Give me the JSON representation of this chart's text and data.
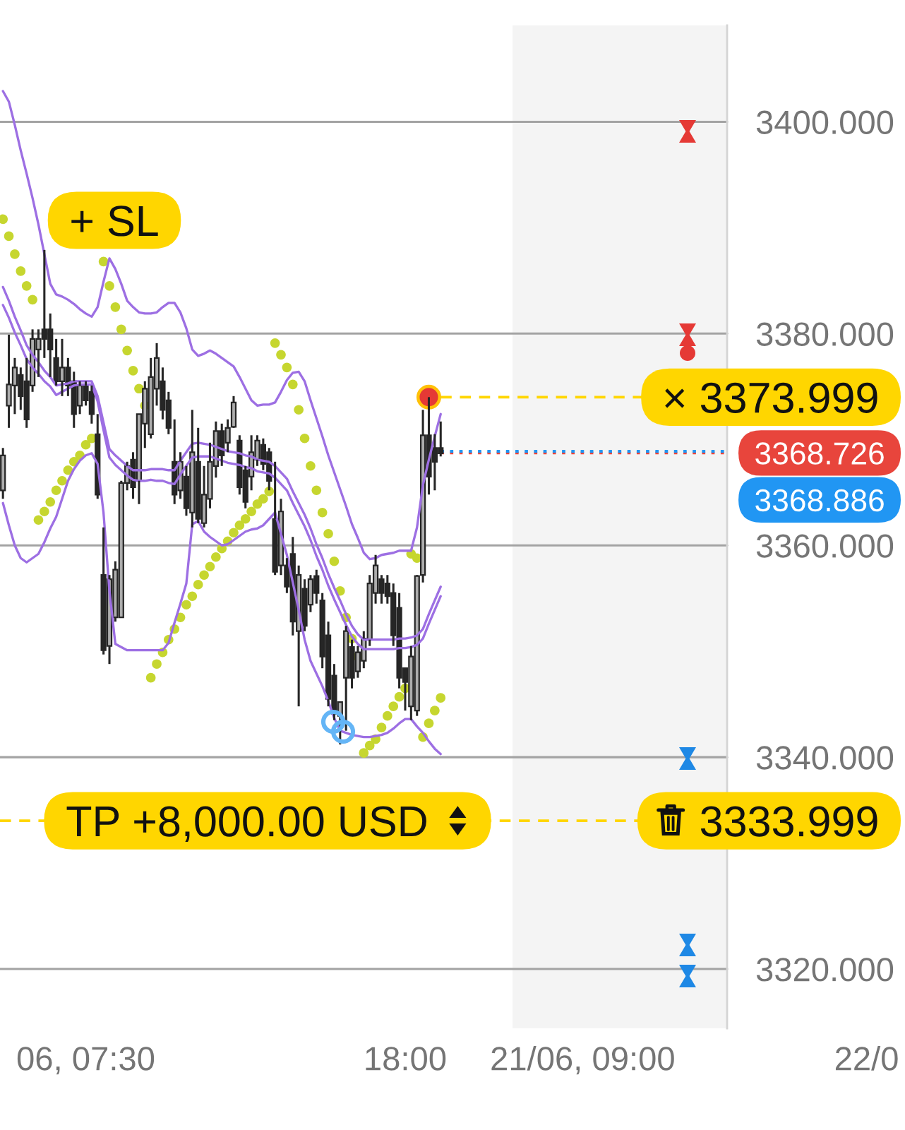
{
  "chart_data": {
    "type": "candlestick",
    "color": "#262626",
    "categories": [
      null,
      null,
      null,
      null,
      null,
      null,
      null,
      null,
      null,
      null,
      null,
      null,
      null,
      null,
      "06, 07:30",
      null,
      null,
      null,
      null,
      null,
      null,
      null,
      null,
      null,
      null,
      null,
      null,
      null,
      null,
      null,
      null,
      null,
      null,
      null,
      null,
      null,
      null,
      null,
      null,
      null,
      null,
      null,
      null,
      null,
      null,
      null,
      null,
      null,
      null,
      null,
      null,
      null,
      null,
      null,
      null,
      null,
      null,
      null,
      null,
      null,
      null,
      null,
      null,
      null,
      null,
      null,
      null,
      null,
      "18:00",
      null,
      null,
      null,
      null,
      null,
      null,
      null,
      null,
      null,
      null,
      null,
      null,
      null,
      null,
      null,
      null,
      null,
      null,
      null,
      null,
      null,
      null,
      null,
      null,
      null,
      null,
      null,
      null,
      null,
      "21/06, 09:00",
      null,
      null,
      null,
      null,
      null,
      null,
      null,
      null,
      null,
      null,
      null,
      null,
      null,
      null,
      null,
      null,
      null,
      null,
      null,
      null,
      null,
      null,
      null,
      null,
      null,
      null,
      null,
      null,
      null,
      null,
      null,
      null,
      null,
      null,
      null,
      null,
      null,
      null,
      null,
      null,
      null,
      null,
      null,
      null,
      null,
      null,
      null,
      "22/0",
      null,
      null,
      null,
      null,
      null,
      null
    ],
    "ohlc": [
      [
        3365.2,
        3369.2,
        3364.4,
        3368.5
      ],
      [
        3373.2,
        3379.9,
        3371.1,
        3375.2
      ],
      [
        3375.1,
        3377.7,
        3372.4,
        3376.8
      ],
      [
        3376.1,
        3376.8,
        3372.8,
        3374.1
      ],
      [
        3375.5,
        3377.7,
        3371.1,
        3371.9
      ],
      [
        3375.1,
        3380.4,
        3374.5,
        3379.5
      ],
      [
        3378.5,
        3380.4,
        3375.9,
        3379.5
      ],
      [
        3380.4,
        3387.9,
        3377.7,
        3379.5
      ],
      [
        3380.4,
        3381.9,
        3375.9,
        3378.5
      ],
      [
        3377.7,
        3379.5,
        3375.1,
        3375.5
      ],
      [
        3375.5,
        3379.5,
        3374.1,
        3376.8
      ],
      [
        3376.8,
        3377.7,
        3374.1,
        3375.1
      ],
      [
        3375.5,
        3376.4,
        3371.1,
        3372.4
      ],
      [
        3373.2,
        3375.5,
        3372.4,
        3375.1
      ],
      [
        3375.1,
        3375.5,
        3373.2,
        3373.7
      ],
      [
        3374.5,
        3375.1,
        3371.5,
        3372.4
      ],
      [
        3370.5,
        3372.4,
        3364.4,
        3364.8
      ],
      [
        3357.2,
        3361.7,
        3349.7,
        3350.1
      ],
      [
        3350.5,
        3357.2,
        3348.8,
        3356.8
      ],
      [
        3353.2,
        3358.5,
        3352.8,
        3357.7
      ],
      [
        3353.2,
        3366.1,
        3353.2,
        3365.9
      ],
      [
        3365.9,
        3367.9,
        3365.2,
        3367.5
      ],
      [
        3368.1,
        3368.8,
        3364.4,
        3365.5
      ],
      [
        3366.1,
        3372.4,
        3363.9,
        3372.4
      ],
      [
        3371.5,
        3375.5,
        3369.2,
        3374.8
      ],
      [
        3370.5,
        3377.7,
        3370.1,
        3375.9
      ],
      [
        3374.8,
        3379.1,
        3373.2,
        3377.7
      ],
      [
        3375.5,
        3376.8,
        3371.9,
        3372.8
      ],
      [
        3373.7,
        3374.5,
        3370.5,
        3371.1
      ],
      [
        3367.9,
        3371.9,
        3363.9,
        3364.8
      ],
      [
        3365.2,
        3368.8,
        3364.4,
        3367.9
      ],
      [
        3366.5,
        3367.5,
        3362.8,
        3363.5
      ],
      [
        3363.1,
        3372.8,
        3361.7,
        3368.8
      ],
      [
        3367.9,
        3371.1,
        3362.1,
        3362.5
      ],
      [
        3362.1,
        3367.5,
        3361.7,
        3364.8
      ],
      [
        3364.4,
        3369.7,
        3363.5,
        3367.9
      ],
      [
        3367.5,
        3371.7,
        3366.4,
        3370.8
      ],
      [
        3370.8,
        3371.5,
        3367.5,
        3368.5
      ],
      [
        3369.7,
        3371.9,
        3368.8,
        3371.1
      ],
      [
        3371.2,
        3374.1,
        3371.1,
        3373.5
      ],
      [
        3369.9,
        3370.4,
        3364.8,
        3365.5
      ],
      [
        3367.1,
        3367.5,
        3363.5,
        3364.1
      ],
      [
        3366.5,
        3370.4,
        3365.2,
        3368.8
      ],
      [
        3368.1,
        3370.4,
        3367.5,
        3369.9
      ],
      [
        3369.5,
        3370.1,
        3367.1,
        3367.7
      ],
      [
        3368.8,
        3369.2,
        3365.2,
        3366.1
      ],
      [
        3362.5,
        3367.9,
        3357.2,
        3357.5
      ],
      [
        3358.1,
        3364.4,
        3357.2,
        3363.2
      ],
      [
        3358.1,
        3358.8,
        3355.5,
        3356.1
      ],
      [
        3359.2,
        3360.8,
        3351.5,
        3352.8
      ],
      [
        3351.9,
        3358.1,
        3344.8,
        3357.2
      ],
      [
        3355.9,
        3356.8,
        3351.9,
        3352.4
      ],
      [
        3354.4,
        3357.2,
        3353.7,
        3356.8
      ],
      [
        3357.1,
        3357.7,
        3354.5,
        3355.5
      ],
      [
        3354.8,
        3355.5,
        3348.4,
        3349.5
      ],
      [
        3351.5,
        3352.8,
        3344.8,
        3345.5
      ],
      [
        3347.7,
        3348.8,
        3343.5,
        3344.1
      ],
      [
        3343.9,
        3345.2,
        3341.2,
        3345.2
      ],
      [
        3347.5,
        3352.4,
        3342.5,
        3351.9
      ],
      [
        3350.4,
        3351.1,
        3346.5,
        3347.5
      ],
      [
        3348.1,
        3350.5,
        3347.5,
        3349.9
      ],
      [
        3349.1,
        3351.9,
        3348.4,
        3351.2
      ],
      [
        3351.1,
        3357.2,
        3350.5,
        3356.4
      ],
      [
        3355.5,
        3359.1,
        3354.5,
        3358.1
      ],
      [
        3356.8,
        3357.2,
        3354.5,
        3355.5
      ],
      [
        3356.4,
        3357.2,
        3354.5,
        3355.2
      ],
      [
        3355.5,
        3356.4,
        3350.5,
        3351.5
      ],
      [
        3354.1,
        3355.5,
        3346.5,
        3347.5
      ],
      [
        3348.4,
        3348.4,
        3344.4,
        3347.1
      ],
      [
        3344.8,
        3350.5,
        3343.5,
        3349.5
      ],
      [
        3344.4,
        3357.2,
        3343.9,
        3357.1
      ],
      [
        3357.2,
        3372.8,
        3356.5,
        3370.4
      ],
      [
        3370.4,
        3374.0,
        3364.8,
        3366.5
      ],
      [
        3369.2,
        3370.5,
        3365.2,
        3367.9
      ],
      [
        3369.2,
        3371.7,
        3368.4,
        3368.7
      ],
      null,
      null,
      null,
      null,
      null,
      null,
      null,
      null,
      null,
      null,
      null,
      null,
      null,
      null,
      null,
      null,
      null,
      null,
      null,
      null,
      null,
      null,
      null,
      null,
      null,
      null,
      null,
      null,
      null,
      null,
      null,
      null,
      null,
      null,
      null,
      null,
      null,
      null,
      null,
      null,
      null,
      null,
      null,
      null,
      null,
      null,
      null,
      null,
      null,
      null,
      null,
      null,
      null,
      null,
      null,
      null,
      null,
      null,
      null,
      null,
      null,
      null,
      null,
      null,
      null,
      null,
      null,
      null,
      null,
      null,
      null,
      null,
      null,
      null,
      null,
      null,
      null,
      null
    ],
    "series": [
      {
        "type": "line",
        "color": "#9d6fe3",
        "values": [
          3402.9,
          3401.9,
          3399.7,
          3397.3,
          3395.1,
          3392.8,
          3390.3,
          3387.5,
          3384.7,
          3383.7,
          3383.5,
          3383.2,
          3382.8,
          3382.3,
          3381.9,
          3381.6,
          3382.5,
          3384.9,
          3387.1,
          3386.1,
          3384.7,
          3383.1,
          3382.5,
          3382.0,
          3381.9,
          3381.9,
          3382.0,
          3382.5,
          3382.9,
          3382.9,
          3382.0,
          3380.5,
          3378.5,
          3377.9,
          3378.1,
          3378.4,
          3378.1,
          3377.7,
          3377.3,
          3376.9,
          3375.9,
          3374.8,
          3373.7,
          3373.2,
          3373.3,
          3373.3,
          3373.5,
          3374.5,
          3375.6,
          3376.3,
          3376.4,
          3375.5,
          3373.7,
          3372.0,
          3370.3,
          3368.5,
          3366.9,
          3365.3,
          3363.7,
          3362.0,
          3360.7,
          3359.3,
          3358.7,
          3358.8,
          3359.1,
          3359.2,
          3359.3,
          3359.5,
          3359.5,
          3359.5,
          3361.7,
          3365.7,
          3368.1,
          3370.3,
          3372.4,
          null,
          null,
          null,
          null,
          null,
          null,
          null,
          null,
          null,
          null,
          null,
          null,
          null,
          null,
          null,
          null,
          null,
          null,
          null,
          null,
          null,
          null,
          null,
          null,
          null,
          null,
          null,
          null,
          null,
          null,
          null,
          null,
          null,
          null,
          null,
          null,
          null,
          null,
          null,
          null,
          null,
          null,
          null,
          null,
          null,
          null,
          null,
          null,
          null,
          null,
          null,
          null,
          null,
          null,
          null,
          null,
          null,
          null,
          null,
          null,
          null,
          null,
          null,
          null,
          null,
          null,
          null,
          null,
          null,
          null,
          null,
          null,
          null,
          null,
          null,
          null,
          null,
          null
        ]
      },
      {
        "type": "line",
        "color": "#9d6fe3",
        "values": [
          3384.4,
          3383.1,
          3381.6,
          3380.3,
          3378.9,
          3378.0,
          3377.3,
          3376.5,
          3375.9,
          3375.1,
          3375.2,
          3375.3,
          3375.5,
          3375.5,
          3375.5,
          3375.5,
          3374.1,
          3371.6,
          3369.1,
          3368.5,
          3368.0,
          3367.5,
          3367.1,
          3367.1,
          3367.1,
          3367.2,
          3367.2,
          3367.2,
          3367.1,
          3367.1,
          3368.0,
          3368.8,
          3369.6,
          3369.7,
          3369.6,
          3369.5,
          3369.3,
          3369.1,
          3368.9,
          3368.8,
          3368.7,
          3368.5,
          3368.4,
          3368.1,
          3368.0,
          3367.9,
          3367.5,
          3366.9,
          3366.3,
          3365.1,
          3364.0,
          3362.9,
          3361.6,
          3360.1,
          3358.8,
          3357.3,
          3356.0,
          3354.8,
          3353.5,
          3352.4,
          3351.6,
          3351.1,
          3351.1,
          3351.1,
          3351.1,
          3351.1,
          3351.1,
          3351.2,
          3351.2,
          3351.3,
          3351.5,
          3352.1,
          3353.5,
          3354.8,
          3356.1,
          null,
          null,
          null,
          null,
          null,
          null,
          null,
          null,
          null,
          null,
          null,
          null,
          null,
          null,
          null,
          null,
          null,
          null,
          null,
          null,
          null,
          null,
          null,
          null,
          null,
          null,
          null,
          null,
          null,
          null,
          null,
          null,
          null,
          null,
          null,
          null,
          null,
          null,
          null,
          null,
          null,
          null,
          null,
          null,
          null,
          null,
          null,
          null,
          null,
          null,
          null,
          null,
          null,
          null,
          null,
          null,
          null,
          null,
          null,
          null,
          null,
          null,
          null,
          null,
          null,
          null,
          null,
          null,
          null,
          null,
          null,
          null,
          null,
          null,
          null,
          null,
          null,
          null
        ]
      },
      {
        "type": "line",
        "color": "#9d6fe3",
        "values": [
          3382.7,
          3381.5,
          3380.1,
          3378.9,
          3377.6,
          3376.8,
          3376.2,
          3375.5,
          3375.0,
          3374.2,
          3374.5,
          3374.8,
          3375.1,
          3375.2,
          3375.2,
          3375.2,
          3373.6,
          3370.9,
          3368.3,
          3367.6,
          3367.1,
          3366.6,
          3366.2,
          3366.1,
          3366.1,
          3366.2,
          3366.1,
          3366.1,
          3365.9,
          3365.8,
          3366.7,
          3367.5,
          3368.3,
          3368.4,
          3368.4,
          3368.4,
          3368.2,
          3368.0,
          3367.8,
          3367.7,
          3367.6,
          3367.4,
          3367.3,
          3367.0,
          3366.9,
          3366.8,
          3366.4,
          3365.8,
          3365.2,
          3364.0,
          3362.9,
          3361.8,
          3360.5,
          3359.0,
          3357.7,
          3356.2,
          3354.9,
          3353.7,
          3352.5,
          3351.4,
          3350.7,
          3350.2,
          3350.2,
          3350.2,
          3350.2,
          3350.2,
          3350.2,
          3350.3,
          3350.3,
          3350.4,
          3350.6,
          3351.2,
          3352.6,
          3353.9,
          3355.2,
          null,
          null,
          null,
          null,
          null,
          null,
          null,
          null,
          null,
          null,
          null,
          null,
          null,
          null,
          null,
          null,
          null,
          null,
          null,
          null,
          null,
          null,
          null,
          null,
          null,
          null,
          null,
          null,
          null,
          null,
          null,
          null,
          null,
          null,
          null,
          null,
          null,
          null,
          null,
          null,
          null,
          null,
          null,
          null,
          null,
          null,
          null,
          null,
          null,
          null,
          null,
          null,
          null,
          null,
          null,
          null,
          null,
          null,
          null,
          null,
          null,
          null,
          null,
          null,
          null,
          null,
          null,
          null,
          null,
          null,
          null,
          null,
          null,
          null,
          null,
          null,
          null,
          null
        ]
      },
      {
        "type": "line",
        "color": "#9d6fe3",
        "values": [
          3364.0,
          3361.9,
          3360.0,
          3358.8,
          3358.4,
          3358.8,
          3359.2,
          3360.3,
          3361.6,
          3362.7,
          3364.4,
          3366.1,
          3367.2,
          3368.0,
          3368.5,
          3368.7,
          3367.7,
          3363.1,
          3355.7,
          3350.7,
          3350.4,
          3350.1,
          3350.1,
          3350.1,
          3350.1,
          3350.1,
          3350.1,
          3350.1,
          3350.8,
          3352.7,
          3354.5,
          3356.4,
          3362.0,
          3362.3,
          3361.3,
          3360.8,
          3360.4,
          3360.0,
          3360.1,
          3360.5,
          3360.9,
          3361.3,
          3361.5,
          3361.6,
          3361.9,
          3362.5,
          3363.1,
          3361.1,
          3359.1,
          3356.5,
          3353.9,
          3351.1,
          3349.1,
          3347.9,
          3346.7,
          3345.3,
          3343.7,
          3342.5,
          3342.3,
          3342.1,
          3342.0,
          3341.9,
          3341.9,
          3342.0,
          3342.1,
          3342.3,
          3342.7,
          3343.2,
          3343.6,
          3343.6,
          3342.9,
          3342.3,
          3341.5,
          3340.8,
          3340.3,
          null,
          null,
          null,
          null,
          null,
          null,
          null,
          null,
          null,
          null,
          null,
          null,
          null,
          null,
          null,
          null,
          null,
          null,
          null,
          null,
          null,
          null,
          null,
          null,
          null,
          null,
          null,
          null,
          null,
          null,
          null,
          null,
          null,
          null,
          null,
          null,
          null,
          null,
          null,
          null,
          null,
          null,
          null,
          null,
          null,
          null,
          null,
          null,
          null,
          null,
          null,
          null,
          null,
          null,
          null,
          null,
          null,
          null,
          null,
          null,
          null,
          null,
          null,
          null,
          null,
          null,
          null,
          null,
          null,
          null,
          null,
          null,
          null,
          null,
          null,
          null,
          null,
          null
        ]
      },
      {
        "type": "scatter",
        "color": "#c6d62f",
        "marker": "circle",
        "values": [
          3390.8,
          3389.2,
          3387.5,
          3385.9,
          3384.5,
          3383.2,
          3362.4,
          3363.2,
          3364.1,
          3365.2,
          3366.1,
          3367.1,
          3367.9,
          3368.5,
          3369.5,
          3370.1,
          null,
          3386.8,
          3384.5,
          3382.5,
          3380.4,
          3378.4,
          3376.5,
          3374.8,
          3373.2,
          3347.5,
          3348.8,
          3349.9,
          3351.1,
          3352.1,
          3353.2,
          3354.4,
          3355.2,
          3356.3,
          3357.2,
          3358.0,
          3358.9,
          3359.7,
          3360.4,
          3361.2,
          3361.9,
          3362.5,
          3363.2,
          3363.9,
          3364.4,
          3365.1,
          3379.1,
          3378.0,
          3376.8,
          3375.2,
          3372.8,
          3370.1,
          3367.5,
          3365.2,
          3363.1,
          3361.1,
          3358.5,
          3355.7,
          3353.2,
          3351.2,
          3349.5,
          3340.4,
          3341.1,
          3341.7,
          3342.8,
          3343.9,
          3344.8,
          3345.7,
          3346.5,
          3359.2,
          3358.8,
          3341.9,
          3343.2,
          3344.4,
          3345.6,
          null,
          null,
          null,
          null,
          null,
          null,
          null,
          null,
          null,
          null,
          null,
          null,
          null,
          null,
          null,
          null,
          null,
          null,
          null,
          null,
          null,
          null,
          null,
          null,
          null,
          null,
          null,
          null,
          null,
          null,
          null,
          null,
          null,
          null,
          null,
          null,
          null,
          null,
          null,
          null,
          null,
          null,
          null,
          null,
          null,
          null,
          null,
          null,
          null,
          null,
          null,
          null,
          null,
          null,
          null,
          null,
          null,
          null,
          null,
          null,
          null,
          null,
          null,
          null,
          null,
          null,
          null,
          null,
          null,
          null,
          null,
          null,
          null,
          null,
          null,
          null,
          null,
          null
        ]
      },
      {
        "type": "scatter",
        "color": "#e53935",
        "marker": "circle",
        "values": [
          null,
          null,
          null,
          null,
          null,
          null,
          null,
          null,
          null,
          null,
          null,
          null,
          null,
          null,
          null,
          null,
          null,
          null,
          null,
          null,
          null,
          null,
          null,
          null,
          null,
          null,
          null,
          null,
          null,
          null,
          null,
          null,
          null,
          null,
          null,
          null,
          null,
          null,
          null,
          null,
          null,
          null,
          null,
          null,
          null,
          null,
          null,
          null,
          null,
          null,
          null,
          null,
          null,
          null,
          null,
          null,
          null,
          null,
          null,
          null,
          null,
          null,
          null,
          null,
          null,
          null,
          null,
          null,
          null,
          null,
          null,
          null,
          3374.0,
          null,
          null,
          null,
          null,
          null,
          null,
          null,
          null,
          null,
          null,
          null,
          null,
          null,
          null,
          null,
          null,
          null,
          null,
          null,
          null,
          null,
          null,
          null,
          null,
          null,
          null,
          null,
          null,
          null,
          null,
          null,
          null,
          null,
          null,
          null,
          null,
          null,
          null,
          null,
          null,
          null,
          null,
          null,
          null,
          null,
          null,
          null,
          null,
          null,
          null,
          null,
          null,
          null,
          null,
          null,
          null,
          null,
          null,
          null,
          null,
          null,
          null,
          null,
          null,
          null,
          null,
          null,
          null,
          null,
          null,
          null,
          null,
          null,
          null,
          null,
          null,
          null,
          null,
          null,
          null
        ]
      }
    ],
    "ylim": [
      3314.4,
      3409.1
    ],
    "yticks": [
      {
        "value": 3320,
        "label": "3320.000"
      },
      {
        "value": 3340,
        "label": "3340.000"
      },
      {
        "value": 3360,
        "label": "3360.000"
      },
      {
        "value": 3380,
        "label": "3380.000"
      },
      {
        "value": 3400,
        "label": "3400.000"
      }
    ],
    "grid": "y",
    "ref_lines": [
      {
        "axis": "y",
        "value": 3373.999,
        "label": "× 3373.999",
        "color": "#ffd600",
        "line_style": "dashed"
      },
      {
        "axis": "y",
        "value": 3333.999,
        "label": "3333.999",
        "color": "#ffd600",
        "line_style": "dashed"
      },
      {
        "axis": "y",
        "value": 3368.726,
        "label": "3368.726",
        "color": "#e8453c",
        "line_style": "dotted"
      },
      {
        "axis": "y",
        "value": 3368.886,
        "label": "3368.886",
        "color": "#2196f3",
        "line_style": "dotted"
      }
    ],
    "annotations": [
      "+ SL",
      {
        "text": "TP +8,000.00 USD",
        "y": 3333.999
      }
    ]
  }
}
